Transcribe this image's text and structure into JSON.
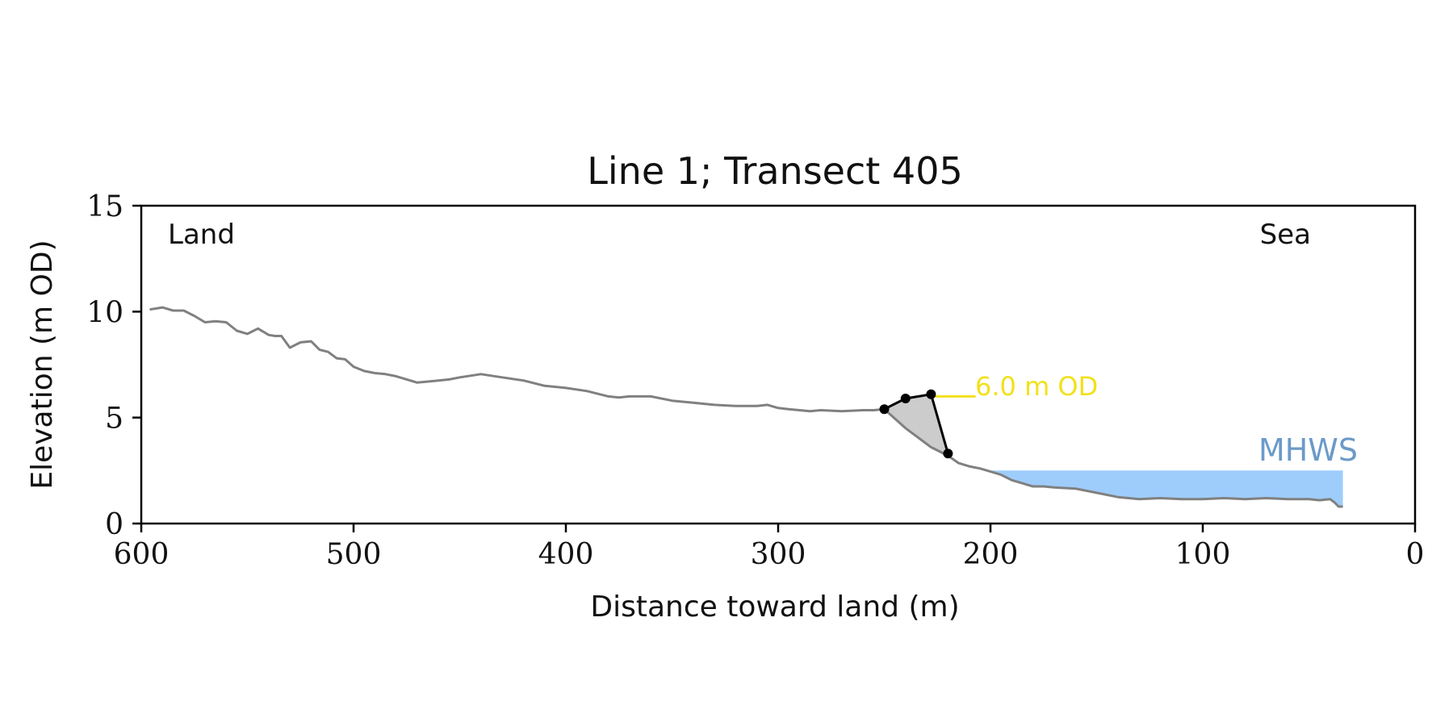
{
  "chart_data": {
    "type": "line",
    "title": "Line 1; Transect 405",
    "xlabel": "Distance toward land (m)",
    "ylabel": "Elevation (m OD)",
    "xlim": [
      600,
      0
    ],
    "ylim": [
      0,
      15
    ],
    "x_ticks": [
      600,
      500,
      400,
      300,
      200,
      100,
      0
    ],
    "y_ticks": [
      0,
      5,
      10,
      15
    ],
    "x_tick_labels": [
      "600",
      "500",
      "400",
      "300",
      "200",
      "100",
      "0"
    ],
    "y_tick_labels": [
      "0",
      "5",
      "10",
      "15"
    ],
    "grid": false,
    "annotations": {
      "left": "Land",
      "right": "Sea",
      "od_label": "6.0 m OD",
      "mhws_label": "MHWS"
    },
    "colors": {
      "profile": "#808080",
      "cliff": "#000000",
      "cliff_fill": "#cccccc",
      "od_line": "#f2e11a",
      "mhws_fill": "#9ecdfc",
      "mhws_text": "#6b9ac8",
      "axes": "#000000"
    },
    "series": [
      {
        "x": [
          596,
          590,
          585,
          580,
          575,
          570,
          565,
          560,
          555,
          550,
          545,
          540,
          537,
          534,
          530,
          525,
          520,
          516,
          512,
          508,
          504,
          500,
          495,
          490,
          485,
          480,
          470,
          460,
          455,
          450,
          440,
          430,
          420,
          410,
          400,
          390,
          380,
          375,
          370,
          360,
          350,
          340,
          330,
          320,
          310,
          305,
          300,
          295,
          290,
          285,
          280,
          270,
          260,
          255,
          250,
          240,
          228,
          220,
          215,
          210,
          205,
          200,
          195,
          190,
          185,
          180,
          175,
          170,
          160,
          150,
          140,
          130,
          120,
          110,
          100,
          90,
          80,
          70,
          60,
          50,
          45,
          40,
          38,
          36,
          34
        ],
        "y": [
          10.1,
          10.2,
          10.05,
          10.05,
          9.8,
          9.5,
          9.55,
          9.5,
          9.1,
          8.95,
          9.2,
          8.9,
          8.85,
          8.85,
          8.3,
          8.55,
          8.6,
          8.2,
          8.1,
          7.8,
          7.75,
          7.4,
          7.2,
          7.1,
          7.05,
          6.95,
          6.65,
          6.75,
          6.8,
          6.9,
          7.05,
          6.9,
          6.75,
          6.5,
          6.4,
          6.25,
          6.0,
          5.95,
          6.0,
          6.0,
          5.8,
          5.7,
          5.6,
          5.55,
          5.55,
          5.6,
          5.45,
          5.4,
          5.35,
          5.3,
          5.35,
          5.3,
          5.35,
          5.35,
          5.4,
          4.5,
          3.6,
          3.2,
          2.85,
          2.7,
          2.6,
          2.45,
          2.3,
          2.05,
          1.9,
          1.75,
          1.75,
          1.7,
          1.65,
          1.45,
          1.25,
          1.15,
          1.2,
          1.15,
          1.15,
          1.2,
          1.15,
          1.2,
          1.15,
          1.15,
          1.1,
          1.15,
          1.0,
          0.8,
          0.8
        ]
      },
      {
        "x": [
          250,
          240,
          228,
          220
        ],
        "y": [
          5.4,
          5.9,
          6.1,
          3.3
        ]
      },
      {
        "x": [
          228,
          207
        ],
        "y": [
          6.0,
          6.0
        ]
      }
    ],
    "mhws_level": 2.5,
    "mhws_x_range": [
      200,
      34
    ]
  }
}
